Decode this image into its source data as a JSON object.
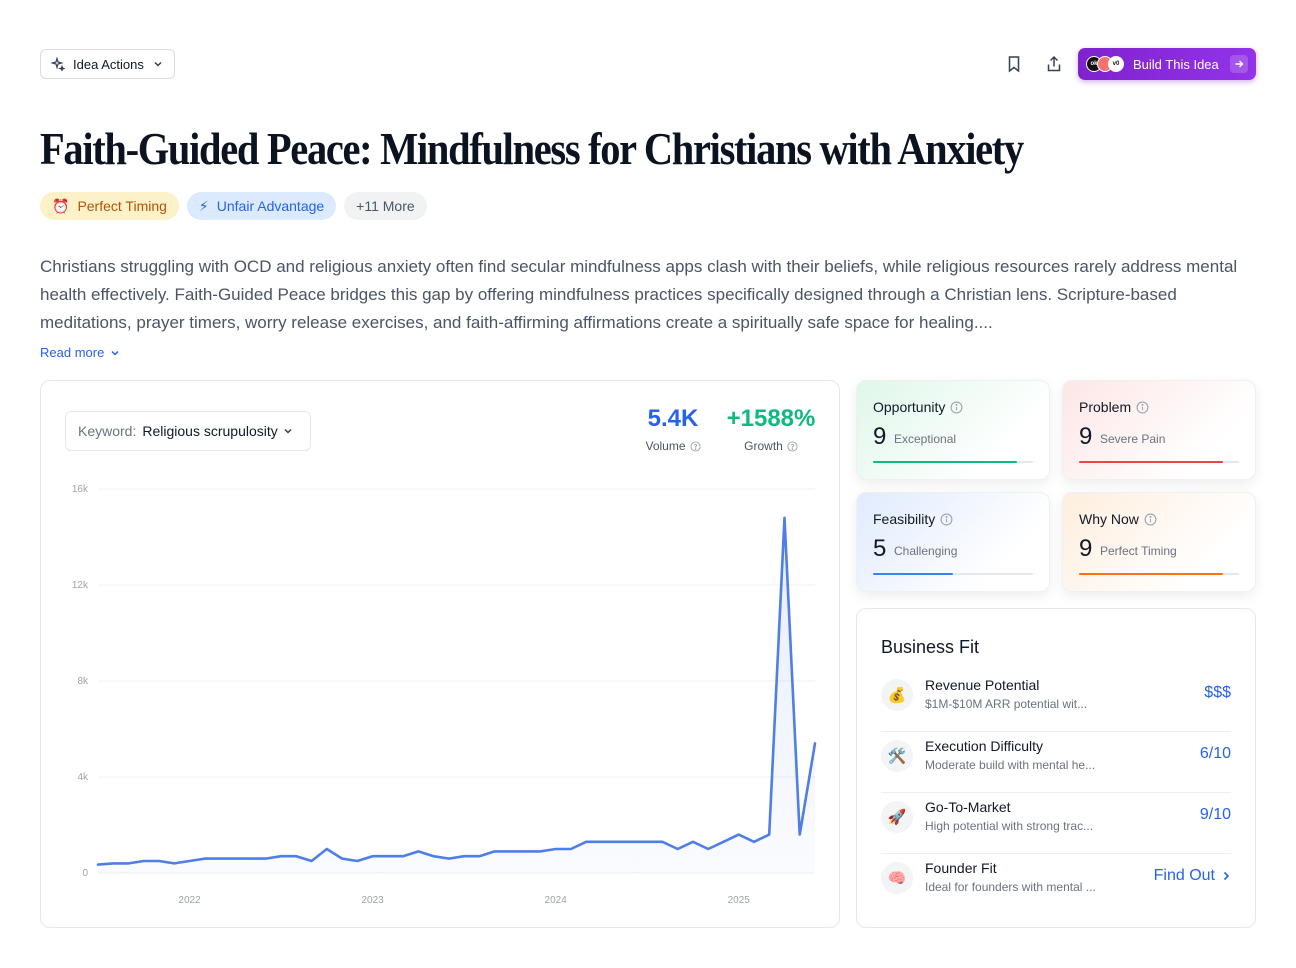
{
  "toolbar": {
    "idea_actions_label": "Idea Actions",
    "build_label": "Build This Idea",
    "avatar_texts": [
      "ok",
      "",
      "v0"
    ]
  },
  "idea": {
    "title": "Faith-Guided Peace: Mindfulness for Christians with Anxiety",
    "tags": [
      {
        "icon": "⏰",
        "label": "Perfect Timing"
      },
      {
        "icon": "⚡",
        "label": "Unfair Advantage"
      },
      {
        "label": "+11 More"
      }
    ],
    "description": "Christians struggling with OCD and religious anxiety often find secular mindfulness apps clash with their beliefs, while religious resources rarely address mental health effectively. Faith-Guided Peace bridges this gap by offering mindfulness practices specifically designed through a Christian lens. Scripture-based meditations, prayer timers, worry release exercises, and faith-affirming affirmations create a spiritually safe space for healing....",
    "read_more": "Read more"
  },
  "trend": {
    "keyword_label": "Keyword:",
    "keyword_value": "Religious scrupulosity",
    "volume_value": "5.4K",
    "volume_label": "Volume",
    "growth_value": "+1588%",
    "growth_label": "Growth",
    "colors": {
      "volume": "#2563eb",
      "growth": "#10b981",
      "line": "#4f7ee8"
    }
  },
  "chart_data": {
    "type": "area",
    "title": "",
    "xlabel": "",
    "ylabel": "",
    "ylim": [
      0,
      16000
    ],
    "yticks": [
      0,
      4000,
      8000,
      12000,
      16000
    ],
    "ytick_labels": [
      "0",
      "4k",
      "8k",
      "12k",
      "16k"
    ],
    "xtick_labels": [
      "2022",
      "2023",
      "2024",
      "2025"
    ],
    "xtick_positions": [
      6,
      18,
      30,
      42
    ],
    "grid": true,
    "x": [
      0,
      1,
      2,
      3,
      4,
      5,
      6,
      7,
      8,
      9,
      10,
      11,
      12,
      13,
      14,
      15,
      16,
      17,
      18,
      19,
      20,
      21,
      22,
      23,
      24,
      25,
      26,
      27,
      28,
      29,
      30,
      31,
      32,
      33,
      34,
      35,
      36,
      37,
      38,
      39,
      40,
      41,
      42,
      43,
      44,
      45,
      46,
      47
    ],
    "series": [
      {
        "values": [
          350,
          400,
          400,
          500,
          500,
          400,
          500,
          600,
          600,
          600,
          600,
          600,
          700,
          700,
          500,
          1000,
          600,
          500,
          700,
          700,
          700,
          900,
          700,
          600,
          700,
          700,
          900,
          900,
          900,
          900,
          1000,
          1000,
          1300,
          1300,
          1300,
          1300,
          1300,
          1300,
          1000,
          1300,
          1000,
          1300,
          1600,
          1300,
          1600,
          14800,
          1600,
          5400
        ]
      }
    ]
  },
  "scores": [
    {
      "label": "Opportunity",
      "value": "9",
      "desc": "Exceptional",
      "level": 0.9,
      "color": "#10b981"
    },
    {
      "label": "Problem",
      "value": "9",
      "desc": "Severe Pain",
      "level": 0.9,
      "color": "#ef4444"
    },
    {
      "label": "Feasibility",
      "value": "5",
      "desc": "Challenging",
      "level": 0.5,
      "color": "#3b82f6"
    },
    {
      "label": "Why Now",
      "value": "9",
      "desc": "Perfect Timing",
      "level": 0.9,
      "color": "#f97316"
    }
  ],
  "business_fit": {
    "title": "Business Fit",
    "rows": [
      {
        "icon": "💰",
        "name": "Revenue Potential",
        "desc": "$1M-$10M ARR potential wit...",
        "value": "$$$"
      },
      {
        "icon": "🛠️",
        "name": "Execution Difficulty",
        "desc": "Moderate build with mental he...",
        "value": "6/10"
      },
      {
        "icon": "🚀",
        "name": "Go-To-Market",
        "desc": "High potential with strong trac...",
        "value": "9/10"
      },
      {
        "icon": "🧠",
        "name": "Founder Fit",
        "desc": "Ideal for founders with mental ...",
        "value": "Find Out"
      }
    ]
  }
}
